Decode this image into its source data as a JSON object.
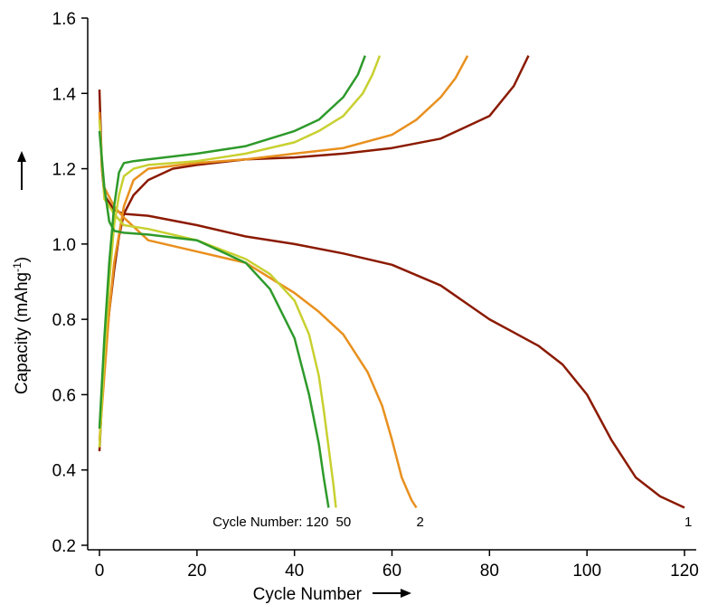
{
  "chart_data": {
    "type": "line",
    "xlabel": "Cycle Number",
    "ylabel": "Capacity (mAhg",
    "ylabel_sup": "-1",
    "ylabel_end": ")",
    "annotation": "Cycle Number:",
    "xlim": [
      0,
      120
    ],
    "xticks": [
      0,
      20,
      40,
      60,
      80,
      100,
      120
    ],
    "ylim": [
      0.2,
      1.6
    ],
    "yticks": [
      0.2,
      0.4,
      0.6,
      0.8,
      {
        "value": 1.0,
        "label": "1.0"
      },
      1.2,
      1.4,
      1.6
    ],
    "series": [
      {
        "name": "1",
        "color": "#8b1a00",
        "x": [
          0,
          0.5,
          1,
          2,
          3,
          4,
          5,
          7,
          10,
          15,
          20,
          30,
          40,
          50,
          60,
          70,
          75,
          80,
          85,
          88,
          null,
          0,
          0.5,
          1,
          3,
          5,
          10,
          20,
          30,
          40,
          50,
          60,
          70,
          80,
          85,
          90,
          95,
          100,
          105,
          110,
          115,
          120
        ],
        "values": [
          0.45,
          0.58,
          0.68,
          0.82,
          0.93,
          1.02,
          1.08,
          1.13,
          1.17,
          1.2,
          1.21,
          1.225,
          1.23,
          1.24,
          1.255,
          1.28,
          1.31,
          1.34,
          1.42,
          1.5,
          null,
          1.41,
          1.2,
          1.13,
          1.09,
          1.08,
          1.075,
          1.05,
          1.02,
          1.0,
          0.975,
          0.945,
          0.89,
          0.8,
          0.765,
          0.73,
          0.68,
          0.6,
          0.48,
          0.38,
          0.33,
          0.3
        ]
      },
      {
        "name": "2",
        "color": "#e8901e",
        "x": [
          0,
          1,
          2,
          3,
          5,
          7,
          10,
          20,
          30,
          40,
          50,
          60,
          65,
          70,
          73,
          75.5,
          null,
          0,
          0.5,
          1,
          3,
          5,
          10,
          20,
          30,
          40,
          45,
          50,
          55,
          58,
          60,
          62,
          64,
          65
        ],
        "values": [
          0.48,
          0.65,
          0.82,
          0.95,
          1.1,
          1.17,
          1.2,
          1.215,
          1.225,
          1.24,
          1.255,
          1.29,
          1.33,
          1.39,
          1.44,
          1.5,
          null,
          1.35,
          1.2,
          1.15,
          1.1,
          1.07,
          1.01,
          0.98,
          0.95,
          0.87,
          0.82,
          0.76,
          0.66,
          0.57,
          0.48,
          0.38,
          0.32,
          0.3
        ]
      },
      {
        "name": "50",
        "color": "#c8d030",
        "x": [
          0,
          1,
          2,
          3,
          4,
          5,
          7,
          10,
          20,
          30,
          40,
          45,
          50,
          54,
          56,
          57.5,
          null,
          0,
          1,
          3,
          5,
          10,
          20,
          30,
          35,
          40,
          43,
          45,
          46,
          47,
          48,
          48.5
        ],
        "values": [
          0.46,
          0.7,
          0.9,
          1.05,
          1.13,
          1.18,
          1.2,
          1.21,
          1.22,
          1.24,
          1.27,
          1.3,
          1.34,
          1.4,
          1.45,
          1.5,
          null,
          1.33,
          1.12,
          1.08,
          1.05,
          1.04,
          1.01,
          0.96,
          0.92,
          0.85,
          0.76,
          0.65,
          0.56,
          0.46,
          0.36,
          0.3
        ]
      },
      {
        "name": "120",
        "color": "#2e9a2a",
        "x": [
          0,
          1,
          2,
          3,
          4,
          5,
          7,
          10,
          20,
          30,
          40,
          45,
          50,
          53,
          54.5,
          null,
          0,
          1,
          2,
          3,
          5,
          10,
          20,
          30,
          35,
          40,
          43,
          45,
          46,
          47
        ],
        "values": [
          0.51,
          0.75,
          0.95,
          1.1,
          1.19,
          1.215,
          1.22,
          1.225,
          1.24,
          1.26,
          1.3,
          1.33,
          1.39,
          1.45,
          1.5,
          null,
          1.3,
          1.15,
          1.06,
          1.035,
          1.03,
          1.025,
          1.01,
          0.95,
          0.88,
          0.75,
          0.6,
          0.47,
          0.38,
          0.3
        ]
      }
    ]
  }
}
